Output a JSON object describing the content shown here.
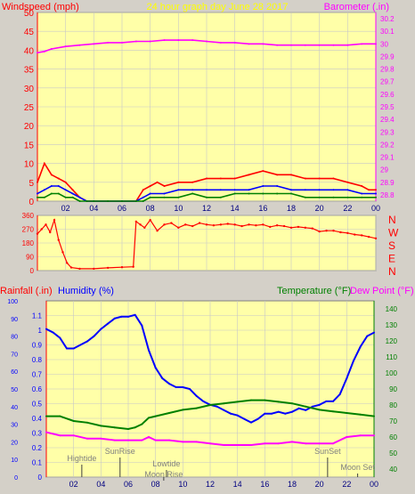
{
  "header": {
    "left_title": "Windspeed (mph)",
    "center_title": "24 hour graph day   June 28 2017",
    "right_title": "Barometer (.in)"
  },
  "colors": {
    "background": "#d4d0c8",
    "plot_bg": "#ffffa8",
    "grid": "#c8c8c8",
    "axis_red": "#ff0000",
    "axis_magenta": "#ff00ff",
    "axis_blue": "#0000ff",
    "axis_green": "#008000",
    "center_title": "#ffff00",
    "annotation": "#808080"
  },
  "chart_data": [
    {
      "type": "line",
      "title": "",
      "xlabel": "",
      "x_ticks": [
        "02",
        "04",
        "06",
        "08",
        "10",
        "12",
        "14",
        "16",
        "18",
        "20",
        "22",
        "00"
      ],
      "xlim": [
        0,
        24
      ],
      "left_axis": {
        "label": "Windspeed (mph)",
        "ylim": [
          0,
          50
        ],
        "ticks": [
          0,
          5,
          10,
          15,
          20,
          25,
          30,
          35,
          40,
          45,
          50
        ]
      },
      "right_axis": {
        "label": "Barometer (.in)",
        "ylim": [
          28.75,
          30.25
        ],
        "ticks": [
          "28.8",
          "28.9",
          "29",
          "29.1",
          "29.2",
          "29.3",
          "29.4",
          "29.5",
          "29.6",
          "29.7",
          "29.8",
          "29.9",
          "30",
          "30.1",
          "30.2"
        ]
      },
      "series": [
        {
          "axis": "right",
          "color": "#ff00ff",
          "x": [
            0,
            0.5,
            1,
            2,
            3,
            4,
            5,
            6,
            7,
            8,
            9,
            10,
            11,
            12,
            13,
            14,
            15,
            16,
            17,
            18,
            19,
            20,
            21,
            22,
            23,
            24
          ],
          "y": [
            29.93,
            29.94,
            29.96,
            29.98,
            29.99,
            30.0,
            30.01,
            30.01,
            30.02,
            30.02,
            30.03,
            30.03,
            30.03,
            30.02,
            30.01,
            30.01,
            30.0,
            30.0,
            29.99,
            29.99,
            29.99,
            29.99,
            29.99,
            29.99,
            30.0,
            30.0
          ]
        },
        {
          "axis": "left",
          "color": "#ff0000",
          "x": [
            0,
            0.5,
            1,
            1.5,
            2,
            2.5,
            3,
            3.5,
            4,
            5,
            6,
            7,
            7.5,
            8,
            8.5,
            9,
            10,
            11,
            12,
            13,
            14,
            15,
            16,
            17,
            18,
            19,
            20,
            21,
            22,
            23,
            23.5,
            24
          ],
          "y": [
            5,
            10,
            7,
            6,
            5,
            3,
            1,
            0,
            0,
            0,
            0,
            0,
            3,
            4,
            5,
            4,
            5,
            5,
            6,
            6,
            6,
            7,
            8,
            7,
            7,
            6,
            6,
            6,
            5,
            4,
            3,
            3
          ]
        },
        {
          "axis": "left",
          "color": "#0000ff",
          "x": [
            0,
            0.5,
            1,
            1.5,
            2,
            2.5,
            3,
            3.5,
            4,
            5,
            6,
            7,
            7.5,
            8,
            9,
            10,
            11,
            12,
            13,
            14,
            15,
            16,
            17,
            18,
            19,
            20,
            21,
            22,
            23,
            24
          ],
          "y": [
            2,
            3,
            4,
            4,
            3,
            2,
            1,
            0,
            0,
            0,
            0,
            0,
            1,
            2,
            2,
            3,
            3,
            3,
            3,
            3,
            3,
            4,
            4,
            3,
            3,
            3,
            3,
            3,
            2,
            2
          ]
        },
        {
          "axis": "left",
          "color": "#008000",
          "x": [
            0,
            0.5,
            1,
            1.5,
            2,
            2.5,
            3,
            3.5,
            4,
            5,
            6,
            7,
            7.5,
            8,
            9,
            10,
            11,
            12,
            13,
            14,
            15,
            16,
            17,
            18,
            19,
            20,
            21,
            22,
            23,
            24
          ],
          "y": [
            1,
            1,
            2,
            2,
            1,
            1,
            0,
            0,
            0,
            0,
            0,
            0,
            0,
            1,
            1,
            1,
            2,
            1,
            1,
            2,
            2,
            2,
            2,
            2,
            1,
            1,
            1,
            1,
            1,
            1
          ]
        }
      ]
    },
    {
      "type": "scatter",
      "title": "",
      "xlim": [
        0,
        24
      ],
      "left_axis": {
        "ylim": [
          0,
          360
        ],
        "ticks": [
          "0",
          "90",
          "180",
          "270",
          "360"
        ]
      },
      "right_labels": [
        "N",
        "W",
        "S",
        "E",
        "N"
      ],
      "series": [
        {
          "color": "#ff0000",
          "x": [
            0,
            0.3,
            0.6,
            0.9,
            1.2,
            1.5,
            1.8,
            2.1,
            2.4,
            3.0,
            4.0,
            5.0,
            6.0,
            6.8,
            7.0,
            7.3,
            7.6,
            8.0,
            8.5,
            9.0,
            9.5,
            10.0,
            10.5,
            11.0,
            11.5,
            12.0,
            12.5,
            13.0,
            13.5,
            14.0,
            14.5,
            15.0,
            15.5,
            16.0,
            16.5,
            17.0,
            17.5,
            18.0,
            18.5,
            19.0,
            19.5,
            20.0,
            20.5,
            21.0,
            21.5,
            22.0,
            22.5,
            23.0,
            23.5,
            24.0
          ],
          "y": [
            240,
            270,
            300,
            250,
            330,
            200,
            120,
            50,
            20,
            12,
            12,
            18,
            22,
            25,
            320,
            300,
            280,
            330,
            260,
            300,
            310,
            280,
            300,
            290,
            310,
            300,
            295,
            300,
            305,
            300,
            290,
            300,
            295,
            300,
            285,
            295,
            290,
            280,
            285,
            280,
            275,
            255,
            260,
            260,
            250,
            245,
            235,
            230,
            220,
            210
          ]
        }
      ]
    },
    {
      "type": "line",
      "title": "",
      "xlim": [
        0,
        24
      ],
      "x_ticks": [
        "02",
        "04",
        "06",
        "08",
        "10",
        "12",
        "14",
        "16",
        "18",
        "20",
        "22",
        "00"
      ],
      "axes": {
        "humidity": {
          "label": "Humidity (%)",
          "ylim": [
            0,
            100
          ],
          "ticks": [
            0,
            10,
            20,
            30,
            40,
            50,
            60,
            70,
            80,
            90,
            100
          ]
        },
        "rainfall": {
          "label": "Rainfall (.in)",
          "ylim": [
            0,
            1.2
          ],
          "ticks": [
            "0",
            "0.1",
            "0.2",
            "0.3",
            "0.4",
            "0.5",
            "0.6",
            "0.7",
            "0.8",
            "0.9",
            "1",
            "1.1"
          ]
        },
        "temperature": {
          "label": "Temperature (°F)",
          "ylim": [
            35,
            145
          ],
          "ticks": [
            40,
            50,
            60,
            70,
            80,
            90,
            100,
            110,
            120,
            130,
            140
          ]
        },
        "dew_point": {
          "label": "Dew Point (°F)"
        }
      },
      "series": [
        {
          "axis": "humidity",
          "color": "#0000ff",
          "x": [
            0,
            0.5,
            1,
            1.5,
            2,
            2.5,
            3,
            3.5,
            4,
            4.5,
            5,
            5.5,
            6,
            6.5,
            7,
            7.5,
            8,
            8.5,
            9,
            9.5,
            10,
            10.5,
            11,
            11.5,
            12,
            12.5,
            13,
            13.5,
            14,
            14.5,
            15,
            15.5,
            16,
            16.5,
            17,
            17.5,
            18,
            18.5,
            19,
            19.5,
            20,
            20.5,
            21,
            21.5,
            22,
            22.5,
            23,
            23.5,
            24
          ],
          "y": [
            84,
            82,
            79,
            73,
            73,
            75,
            77,
            80,
            84,
            87,
            90,
            91,
            91,
            92,
            86,
            72,
            62,
            56,
            53,
            51,
            51,
            50,
            46,
            43,
            41,
            40,
            38,
            36,
            35,
            33,
            31,
            33,
            36,
            36,
            37,
            36,
            37,
            39,
            38,
            40,
            41,
            43,
            43,
            47,
            56,
            66,
            74,
            80,
            82
          ]
        },
        {
          "axis": "temperature",
          "color": "#008000",
          "x": [
            0,
            1,
            2,
            3,
            4,
            5,
            6,
            6.5,
            7,
            7.5,
            8,
            9,
            10,
            11,
            12,
            13,
            14,
            15,
            16,
            17,
            18,
            19,
            20,
            21,
            22,
            23,
            24
          ],
          "y": [
            73,
            73,
            70,
            69,
            67,
            66,
            65,
            66,
            68,
            72,
            73,
            75,
            77,
            78,
            80,
            81,
            82,
            83,
            83,
            82,
            81,
            79,
            77,
            76,
            75,
            74,
            73
          ]
        },
        {
          "axis": "temperature",
          "color": "#ff00ff",
          "x": [
            0,
            1,
            2,
            3,
            4,
            5,
            6,
            7,
            7.5,
            8,
            9,
            10,
            11,
            12,
            13,
            14,
            15,
            16,
            17,
            18,
            19,
            20,
            21,
            22,
            23,
            24
          ],
          "y": [
            63,
            61,
            61,
            59,
            59,
            58,
            58,
            58,
            60,
            58,
            58,
            57,
            57,
            56,
            55,
            55,
            55,
            56,
            56,
            57,
            56,
            56,
            56,
            60,
            61,
            61
          ]
        }
      ],
      "annotations": [
        {
          "text": "Hightide",
          "x": 2.6
        },
        {
          "text": "SunRise",
          "x": 5.4
        },
        {
          "text": "Lowtide",
          "x": 8.8
        },
        {
          "text": "Moon Rise",
          "x": 8.6
        },
        {
          "text": "SunSet",
          "x": 20.6
        },
        {
          "text": "Moon Set",
          "x": 22.8
        }
      ]
    }
  ]
}
